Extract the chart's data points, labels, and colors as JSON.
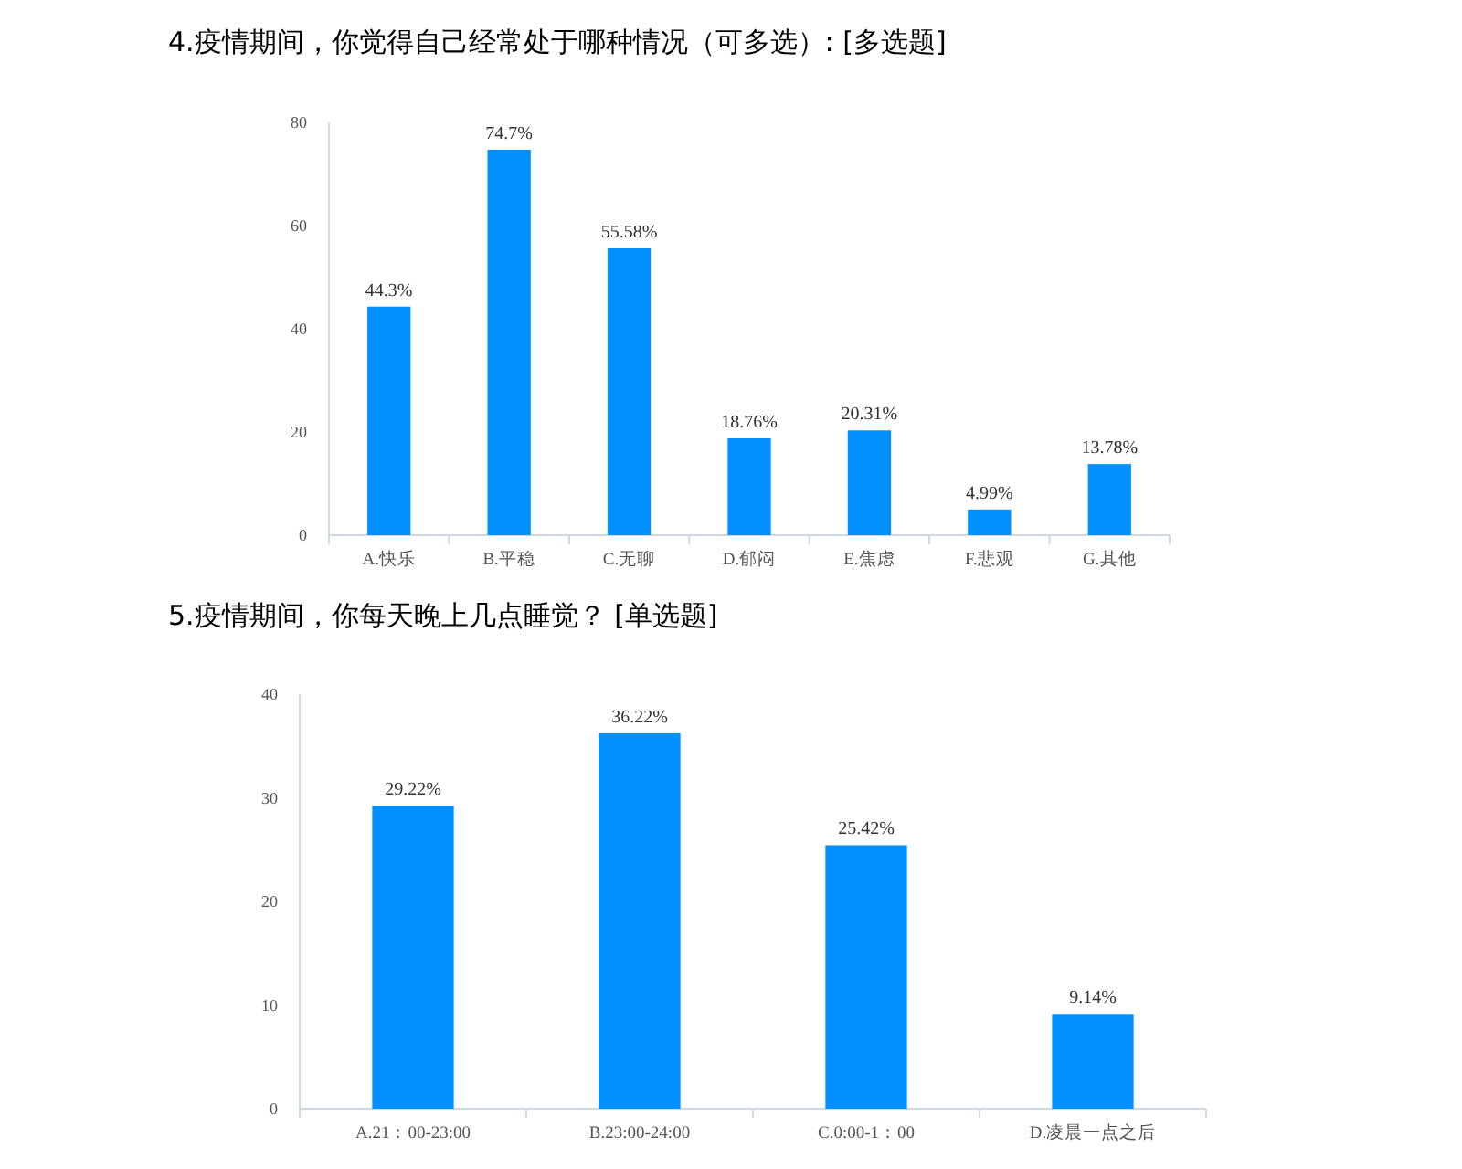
{
  "chart_data": [
    {
      "type": "bar",
      "title": "4.疫情期间，你觉得自己经常处于哪种情况（可多选）: [多选题]",
      "categories": [
        "A.快乐",
        "B.平稳",
        "C.无聊",
        "D.郁闷",
        "E.焦虑",
        "F.悲观",
        "G.其他"
      ],
      "values": [
        44.3,
        74.7,
        55.58,
        18.76,
        20.31,
        4.99,
        13.78
      ],
      "value_labels": [
        "44.3%",
        "74.7%",
        "55.58%",
        "18.76%",
        "20.31%",
        "4.99%",
        "13.78%"
      ],
      "color": "#0090ff",
      "ylim": [
        0,
        80
      ],
      "yticks": [
        0,
        20,
        40,
        60,
        80
      ]
    },
    {
      "type": "bar",
      "title": "5.疫情期间，你每天晚上几点睡觉？  [单选题]",
      "categories": [
        "A.21：00-23:00",
        "B.23:00-24:00",
        "C.0:00-1：00",
        "D.凌晨一点之后"
      ],
      "values": [
        29.22,
        36.22,
        25.42,
        9.14
      ],
      "value_labels": [
        "29.22%",
        "36.22%",
        "25.42%",
        "9.14%"
      ],
      "color": "#0090ff",
      "ylim": [
        0,
        40
      ],
      "yticks": [
        0,
        10,
        20,
        30,
        40
      ]
    }
  ]
}
